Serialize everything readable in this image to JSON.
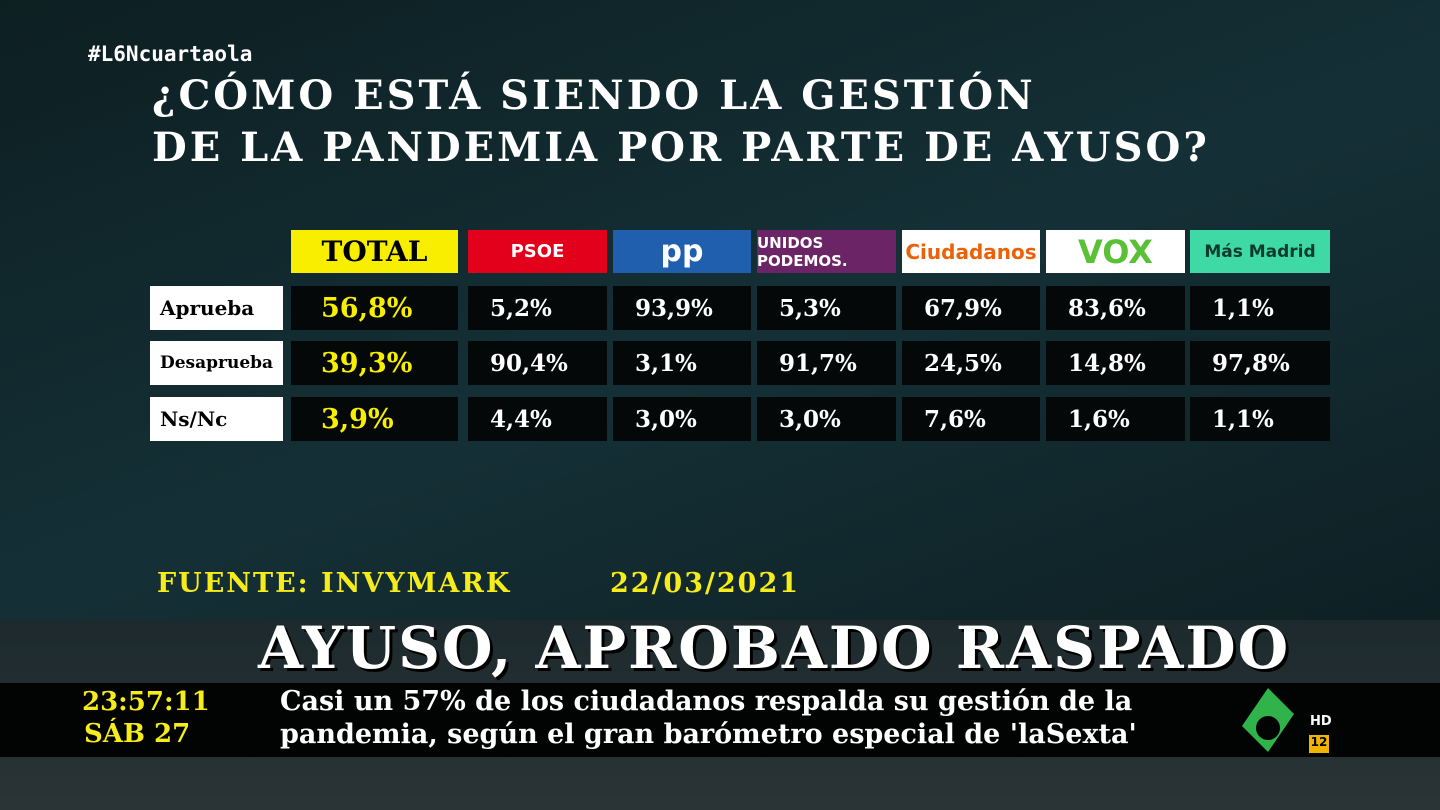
{
  "hashtag": "#L6Ncuartaola",
  "title": [
    "¿CÓMO ESTÁ SIENDO LA GESTIÓN",
    "DE LA PANDEMIA POR PARTE DE AYUSO?"
  ],
  "table": {
    "header": [
      "TOTAL",
      "PSOE",
      "pp",
      "UNIDOS PODEMOS.",
      "Ciudadanos",
      "VOX",
      "Más Madrid"
    ],
    "rows": [
      [
        "Aprueba",
        "56,8%",
        "5,2%",
        "93,9%",
        "5,3%",
        "67,9%",
        "83,6%",
        "1,1%"
      ],
      [
        "Desaprueba",
        "39,3%",
        "90,4%",
        "3,1%",
        "91,7%",
        "24,5%",
        "14,8%",
        "97,8%"
      ],
      [
        "Ns/Nc",
        "3,9%",
        "4,4%",
        "3,0%",
        "3,0%",
        "7,6%",
        "1,6%",
        "1,1%"
      ]
    ]
  },
  "source": "FUENTE: INVYMARK",
  "date": "22/03/2021",
  "headline": "AYUSO, APROBADO RASPADO",
  "ticker": {
    "time": "23:57:11",
    "day": "SÁB 27",
    "lines": [
      "Casi un 57% de los ciudadanos respalda su gestión de la",
      "pandemia, según el gran barómetro especial de 'laSexta'"
    ]
  },
  "logo": {
    "hd": "HD",
    "rating": "12"
  }
}
